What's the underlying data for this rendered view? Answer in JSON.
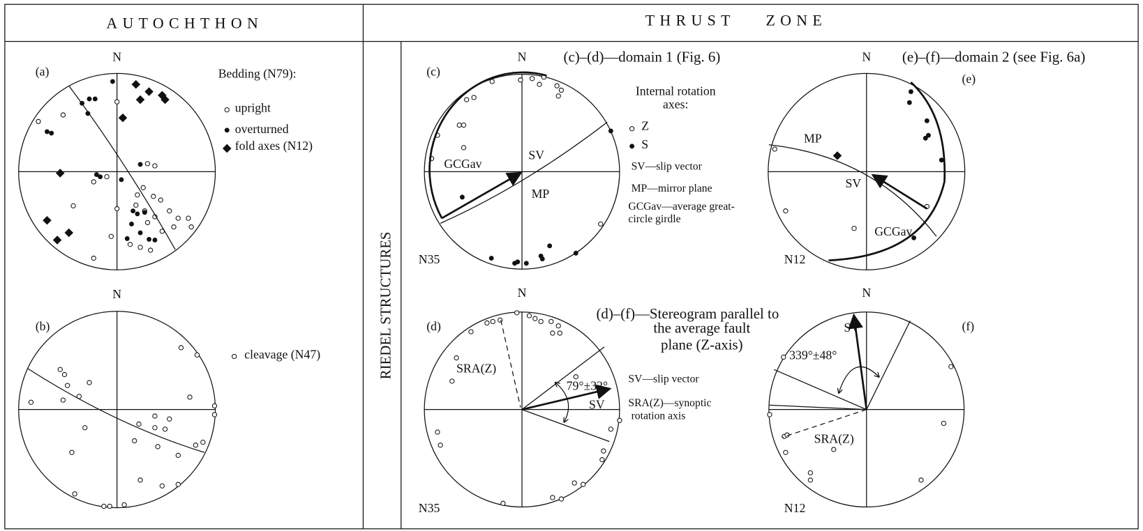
{
  "header": {
    "left": "AUTOCHTHON",
    "right": "THRUST ZONE"
  },
  "side_label": "RIEDEL STRUCTURES",
  "panels": [
    {
      "label": "(a)",
      "north": "N",
      "legend": {
        "title": "Bedding (N79):",
        "items": [
          "upright",
          "overturned",
          "fold axes (N12)"
        ]
      }
    },
    {
      "label": "(b)",
      "north": "N",
      "legend": {
        "items": [
          "cleavage (N47)"
        ]
      }
    },
    {
      "label": "(c)",
      "north": "N",
      "count": "N35",
      "caption": "(c)–(d)—domain 1 (Fig. 6)",
      "annotations": [
        "GCGav",
        "SV",
        "MP"
      ],
      "legend": {
        "title": [
          "Internal rotation",
          "axes:"
        ],
        "items": [
          "Z",
          "S"
        ],
        "notes": [
          "SV—slip vector",
          "MP—mirror plane",
          "GCGav—average great-",
          "circle girdle"
        ]
      }
    },
    {
      "label": "(e)",
      "north": "N",
      "count": "N12",
      "caption": "(e)–(f)—domain 2 (see Fig. 6a)",
      "annotations": [
        "MP",
        "SV",
        "GCGav"
      ]
    },
    {
      "label": "(d)",
      "north": "N",
      "count": "N35",
      "caption": [
        "(d)–(f)—Stereogram parallel to",
        "the average fault",
        "plane (Z-axis)"
      ],
      "annotations": [
        "SRA(Z)",
        "79°±32°",
        "SV"
      ],
      "legend": {
        "notes": [
          "SV—slip vector",
          "SRA(Z)—synoptic",
          "rotation axis"
        ]
      }
    },
    {
      "label": "(f)",
      "north": "N",
      "count": "N12",
      "annotations": [
        "SV",
        "339°±48°",
        "SRA(Z)"
      ]
    }
  ]
}
